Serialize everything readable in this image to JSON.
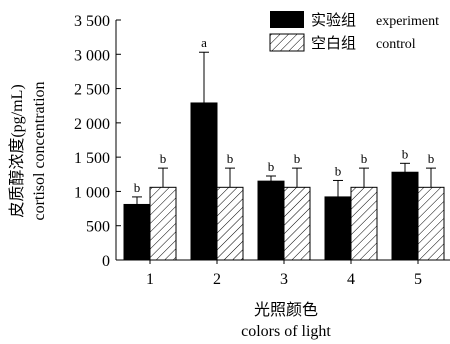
{
  "chart_data": {
    "type": "bar",
    "categories": [
      "1",
      "2",
      "3",
      "4",
      "5"
    ],
    "series": [
      {
        "name": "实验组 experiment",
        "name_zh": "实验组",
        "name_en": "experiment",
        "values": [
          810,
          2290,
          1150,
          920,
          1280
        ],
        "error_upper": [
          920,
          3030,
          1225,
          1160,
          1410
        ],
        "labels": [
          "b",
          "a",
          "b",
          "b",
          "b"
        ],
        "color": "#000000",
        "fill": "solid"
      },
      {
        "name": "空白组 control",
        "name_zh": "空白组",
        "name_en": "control",
        "values": [
          1060,
          1060,
          1060,
          1060,
          1060
        ],
        "error_upper": [
          1340,
          1340,
          1340,
          1340,
          1340
        ],
        "labels": [
          "b",
          "b",
          "b",
          "b",
          "b"
        ],
        "color": "#000000",
        "fill": "hatched"
      }
    ],
    "ylim": [
      0,
      3500
    ],
    "yticks": [
      0,
      500,
      1000,
      1500,
      2000,
      2500,
      3000,
      3500
    ],
    "ytick_labels": [
      "0",
      "500",
      "1 000",
      "1 500",
      "2 000",
      "2 500",
      "3 000",
      "3 500"
    ],
    "ylabel_zh": "皮质醇浓度(pg/mL)",
    "ylabel_en": "cortisol concentration",
    "xlabel_zh": "光照颜色",
    "xlabel_en": "colors of light",
    "legend_position": "top-right",
    "grid": false
  }
}
